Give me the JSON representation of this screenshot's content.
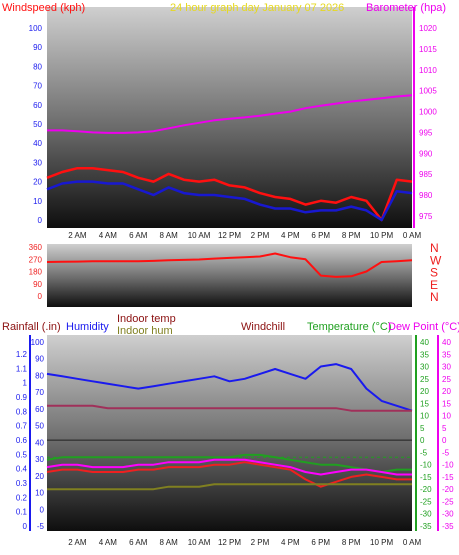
{
  "chart_data": [
    {
      "type": "line",
      "panel": "wind-barometer",
      "title": "24 hour graph day   January 07 2026",
      "left_axis_label": "Windspeed (kph)",
      "right_axis_label": "Barometer (hpa)",
      "left_ticks": [
        "100",
        "90",
        "80",
        "70",
        "60",
        "50",
        "40",
        "30",
        "20",
        "10",
        "0"
      ],
      "right_ticks": [
        "1020",
        "1015",
        "1010",
        "1005",
        "1000",
        "995",
        "990",
        "985",
        "980",
        "975"
      ],
      "left_range": [
        0,
        100
      ],
      "right_range": [
        972.5,
        1025
      ],
      "x_ticks": [
        "2 AM",
        "4 AM",
        "6 AM",
        "8 AM",
        "10 AM",
        "12 PM",
        "2 PM",
        "4 PM",
        "6 PM",
        "8 PM",
        "10 PM",
        "0 AM"
      ],
      "x_hours": [
        0,
        1,
        2,
        3,
        4,
        5,
        6,
        7,
        8,
        9,
        10,
        11,
        12,
        13,
        14,
        15,
        16,
        17,
        18,
        19,
        20,
        21,
        22,
        23,
        24
      ],
      "series": [
        {
          "name": "Windspeed (kph)",
          "color": "#ff1010",
          "axis": "left",
          "values": [
            22,
            25,
            27,
            27,
            26,
            25,
            22,
            20,
            24,
            21,
            20,
            21,
            18,
            17,
            14,
            12,
            11,
            8,
            10,
            9,
            12,
            10,
            0,
            21,
            20
          ]
        },
        {
          "name": "",
          "color": "#1818d0",
          "axis": "left",
          "values": [
            16,
            19,
            20,
            20,
            19,
            19,
            16,
            13,
            17,
            14,
            13,
            13,
            12,
            11,
            8,
            6,
            6,
            4,
            5,
            5,
            7,
            5,
            0,
            15,
            14
          ]
        },
        {
          "name": "Barometer (hpa)",
          "color": "#ee00ee",
          "axis": "right",
          "values": [
            995.5,
            995.5,
            995.3,
            995.0,
            994.9,
            994.9,
            995.0,
            995.3,
            996.0,
            996.7,
            997.3,
            997.9,
            998.3,
            998.6,
            999.0,
            999.5,
            1000.0,
            1000.8,
            1001.4,
            1001.9,
            1002.4,
            1002.8,
            1003.2,
            1003.6,
            1003.9
          ]
        }
      ]
    },
    {
      "type": "line",
      "panel": "wind-direction",
      "left_ticks": [
        "360",
        "270",
        "180",
        "90",
        "0"
      ],
      "compass_labels": [
        "N",
        "W",
        "S",
        "E",
        "N"
      ],
      "left_range": [
        0,
        360
      ],
      "x_hours": [
        0,
        1,
        2,
        3,
        4,
        5,
        6,
        7,
        8,
        9,
        10,
        11,
        12,
        13,
        14,
        15,
        16,
        17,
        18,
        19,
        20,
        21,
        22,
        23,
        24
      ],
      "series": [
        {
          "name": "Wind direction",
          "color": "#ff1010",
          "axis": "left",
          "values": [
            250,
            252,
            253,
            255,
            255,
            255,
            256,
            258,
            262,
            265,
            268,
            275,
            280,
            285,
            290,
            312,
            285,
            270,
            150,
            140,
            145,
            180,
            250,
            255,
            262
          ]
        }
      ]
    },
    {
      "type": "line",
      "panel": "rain-humidity-temperature",
      "labels": {
        "rainfall": "Rainfall (.in)",
        "humidity": "Humidity",
        "indoor_temp": "Indoor temp",
        "indoor_hum": "Indoor hum",
        "windchill": "Windchill",
        "temperature": "Temperature (°C)",
        "dewpoint": "Dew Point (°C)"
      },
      "rain_ticks": [
        "1.2",
        "1.1",
        "1",
        "0.9",
        "0.8",
        "0.7",
        "0.6",
        "0.5",
        "0.4",
        "0.3",
        "0.2",
        "0.1",
        "0"
      ],
      "humidity_ticks": [
        "100",
        "90",
        "80",
        "70",
        "60",
        "50",
        "40",
        "30",
        "20",
        "10",
        "0",
        "-5"
      ],
      "temp_ticks": [
        "40",
        "35",
        "30",
        "25",
        "20",
        "15",
        "10",
        "5",
        "0",
        "-5",
        "-10",
        "-15",
        "-20",
        "-25",
        "-30",
        "-35"
      ],
      "temp_range": [
        -37,
        42
      ],
      "x_ticks": [
        "2 AM",
        "4 AM",
        "6 AM",
        "8 AM",
        "10 AM",
        "12 PM",
        "2 PM",
        "4 PM",
        "6 PM",
        "8 PM",
        "10 PM",
        "0 AM"
      ],
      "x_hours": [
        0,
        1,
        2,
        3,
        4,
        5,
        6,
        7,
        8,
        9,
        10,
        11,
        12,
        13,
        14,
        15,
        16,
        17,
        18,
        19,
        20,
        21,
        22,
        23,
        24
      ],
      "series": [
        {
          "name": "Humidity",
          "color": "#1a1aee",
          "values": [
            27,
            26,
            25,
            24,
            23,
            22,
            21,
            22,
            23,
            24,
            25,
            26,
            24,
            25,
            27,
            29,
            27,
            25,
            30,
            31,
            29,
            21,
            16,
            14,
            12
          ]
        },
        {
          "name": "Indoor hum",
          "color": "#a0305a",
          "values": [
            14,
            14,
            14,
            14,
            13,
            13,
            13,
            13,
            13,
            13,
            13,
            13,
            13,
            13,
            13,
            13,
            13,
            13,
            13,
            13,
            12,
            12,
            12,
            12,
            12
          ]
        },
        {
          "name": "Temperature (°C)",
          "color": "#20a020",
          "values": [
            -8,
            -7,
            -7,
            -7,
            -7,
            -7,
            -7,
            -7,
            -7,
            -7,
            -7,
            -7,
            -7,
            -6,
            -6,
            -7,
            -8,
            -9,
            -10,
            -10,
            -11,
            -12,
            -13,
            -12,
            -12
          ]
        },
        {
          "name": "Windchill",
          "color": "#ee2020",
          "values": [
            -13,
            -12,
            -12,
            -13,
            -13,
            -13,
            -12,
            -12,
            -11,
            -11,
            -11,
            -10,
            -10,
            -9,
            -10,
            -11,
            -12,
            -16,
            -19,
            -17,
            -15,
            -14,
            -15,
            -16,
            -16
          ]
        },
        {
          "name": "Dew Point (°C)",
          "color": "#ff00ff",
          "values": [
            -11,
            -10,
            -10,
            -11,
            -11,
            -11,
            -10,
            -10,
            -9,
            -9,
            -9,
            -8,
            -8,
            -8,
            -9,
            -10,
            -11,
            -13,
            -14,
            -13,
            -12,
            -12,
            -13,
            -14,
            -14
          ]
        },
        {
          "name": "Indoor temp",
          "color": "#808020",
          "values": [
            -20,
            -20,
            -20,
            -20,
            -20,
            -20,
            -20,
            -20,
            -19,
            -19,
            -19,
            -18,
            -18,
            -18,
            -18,
            -18,
            -18,
            -18,
            -18,
            -18,
            -18,
            -18,
            -18,
            -18,
            -18
          ]
        },
        {
          "name": "Rainfall (.in)",
          "color": "#202020",
          "values": [
            0,
            0,
            0,
            0,
            0,
            0,
            0,
            0,
            0,
            0,
            0,
            0,
            0,
            0,
            0,
            0,
            0,
            0,
            0,
            0,
            0,
            0,
            0,
            0,
            0
          ]
        }
      ]
    }
  ]
}
